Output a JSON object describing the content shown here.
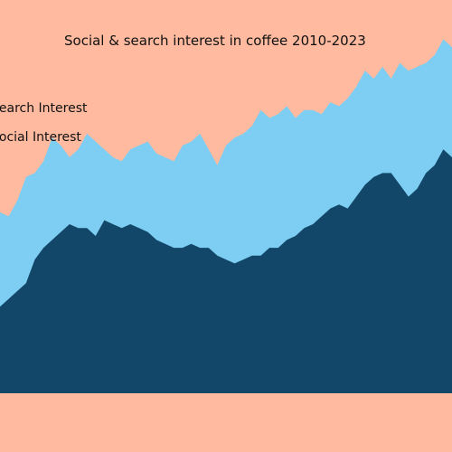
{
  "title": "Social & search interest in coffee 2010-2023",
  "colors": {
    "background": "#FFBA9F",
    "search": "#7DCEF2",
    "social": "#134769"
  },
  "legend": {
    "search_label": "Search Interest",
    "social_label": "Social Interest"
  },
  "chart_data": {
    "type": "area",
    "title": "Social & search interest in coffee 2010-2023",
    "xlabel": "",
    "ylabel": "",
    "ylim": [
      0,
      100
    ],
    "x_domain": [
      2010,
      2023
    ],
    "grid": false,
    "legend_placement": "top-left",
    "series": [
      {
        "name": "Search Interest",
        "x": [
          2010.0,
          2010.25,
          2010.5,
          2010.75,
          2011.0,
          2011.25,
          2011.5,
          2011.75,
          2012.0,
          2012.25,
          2012.5,
          2012.75,
          2013.0,
          2013.25,
          2013.5,
          2013.75,
          2014.0,
          2014.25,
          2014.5,
          2014.75,
          2015.0,
          2015.25,
          2015.5,
          2015.75,
          2016.0,
          2016.25,
          2016.5,
          2016.75,
          2017.0,
          2017.25,
          2017.5,
          2017.75,
          2018.0,
          2018.25,
          2018.5,
          2018.75,
          2019.0,
          2019.25,
          2019.5,
          2019.75,
          2020.0,
          2020.25,
          2020.5,
          2020.75,
          2021.0,
          2021.25,
          2021.5,
          2021.75,
          2022.0,
          2022.25,
          2022.5,
          2022.75,
          2023.0
        ],
        "values": [
          46,
          45,
          49,
          55,
          56,
          59,
          65,
          63,
          60,
          62,
          66,
          64,
          62,
          60,
          59,
          62,
          63,
          64,
          61,
          60,
          59,
          63,
          64,
          66,
          62,
          58,
          63,
          65,
          66,
          68,
          72,
          70,
          71,
          73,
          70,
          72,
          72,
          71,
          74,
          73,
          75,
          78,
          82,
          80,
          83,
          80,
          84,
          82,
          83,
          84,
          86,
          90,
          88
        ]
      },
      {
        "name": "Social Interest",
        "x": [
          2010.0,
          2010.25,
          2010.5,
          2010.75,
          2011.0,
          2011.25,
          2011.5,
          2011.75,
          2012.0,
          2012.25,
          2012.5,
          2012.75,
          2013.0,
          2013.25,
          2013.5,
          2013.75,
          2014.0,
          2014.25,
          2014.5,
          2014.75,
          2015.0,
          2015.25,
          2015.5,
          2015.75,
          2016.0,
          2016.25,
          2016.5,
          2016.75,
          2017.0,
          2017.25,
          2017.5,
          2017.75,
          2018.0,
          2018.25,
          2018.5,
          2018.75,
          2019.0,
          2019.25,
          2019.5,
          2019.75,
          2020.0,
          2020.25,
          2020.5,
          2020.75,
          2021.0,
          2021.25,
          2021.5,
          2021.75,
          2022.0,
          2022.25,
          2022.5,
          2022.75,
          2023.0
        ],
        "values": [
          22,
          24,
          26,
          28,
          34,
          37,
          39,
          41,
          43,
          42,
          42,
          40,
          44,
          43,
          42,
          43,
          42,
          41,
          39,
          38,
          37,
          37,
          38,
          37,
          37,
          35,
          34,
          33,
          34,
          35,
          35,
          37,
          37,
          39,
          40,
          42,
          43,
          45,
          47,
          48,
          47,
          50,
          53,
          55,
          56,
          56,
          53,
          50,
          52,
          56,
          58,
          62,
          60
        ]
      }
    ]
  }
}
